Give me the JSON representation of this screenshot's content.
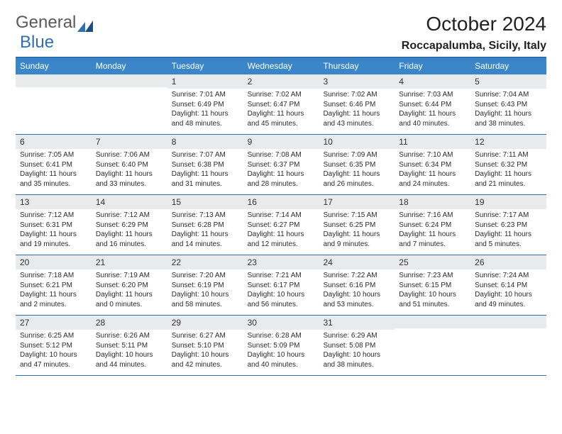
{
  "logo": {
    "text1": "General",
    "text2": "Blue"
  },
  "title": "October 2024",
  "location": "Roccapalumba, Sicily, Italy",
  "colors": {
    "header_bg": "#3a86c8",
    "border": "#2f6fb0",
    "daynum_bg": "#e9eaeb",
    "text": "#222222"
  },
  "weekdays": [
    "Sunday",
    "Monday",
    "Tuesday",
    "Wednesday",
    "Thursday",
    "Friday",
    "Saturday"
  ],
  "weeks": [
    [
      {
        "n": "",
        "sr": "",
        "ss": "",
        "dl": ""
      },
      {
        "n": "",
        "sr": "",
        "ss": "",
        "dl": ""
      },
      {
        "n": "1",
        "sr": "Sunrise: 7:01 AM",
        "ss": "Sunset: 6:49 PM",
        "dl": "Daylight: 11 hours and 48 minutes."
      },
      {
        "n": "2",
        "sr": "Sunrise: 7:02 AM",
        "ss": "Sunset: 6:47 PM",
        "dl": "Daylight: 11 hours and 45 minutes."
      },
      {
        "n": "3",
        "sr": "Sunrise: 7:02 AM",
        "ss": "Sunset: 6:46 PM",
        "dl": "Daylight: 11 hours and 43 minutes."
      },
      {
        "n": "4",
        "sr": "Sunrise: 7:03 AM",
        "ss": "Sunset: 6:44 PM",
        "dl": "Daylight: 11 hours and 40 minutes."
      },
      {
        "n": "5",
        "sr": "Sunrise: 7:04 AM",
        "ss": "Sunset: 6:43 PM",
        "dl": "Daylight: 11 hours and 38 minutes."
      }
    ],
    [
      {
        "n": "6",
        "sr": "Sunrise: 7:05 AM",
        "ss": "Sunset: 6:41 PM",
        "dl": "Daylight: 11 hours and 35 minutes."
      },
      {
        "n": "7",
        "sr": "Sunrise: 7:06 AM",
        "ss": "Sunset: 6:40 PM",
        "dl": "Daylight: 11 hours and 33 minutes."
      },
      {
        "n": "8",
        "sr": "Sunrise: 7:07 AM",
        "ss": "Sunset: 6:38 PM",
        "dl": "Daylight: 11 hours and 31 minutes."
      },
      {
        "n": "9",
        "sr": "Sunrise: 7:08 AM",
        "ss": "Sunset: 6:37 PM",
        "dl": "Daylight: 11 hours and 28 minutes."
      },
      {
        "n": "10",
        "sr": "Sunrise: 7:09 AM",
        "ss": "Sunset: 6:35 PM",
        "dl": "Daylight: 11 hours and 26 minutes."
      },
      {
        "n": "11",
        "sr": "Sunrise: 7:10 AM",
        "ss": "Sunset: 6:34 PM",
        "dl": "Daylight: 11 hours and 24 minutes."
      },
      {
        "n": "12",
        "sr": "Sunrise: 7:11 AM",
        "ss": "Sunset: 6:32 PM",
        "dl": "Daylight: 11 hours and 21 minutes."
      }
    ],
    [
      {
        "n": "13",
        "sr": "Sunrise: 7:12 AM",
        "ss": "Sunset: 6:31 PM",
        "dl": "Daylight: 11 hours and 19 minutes."
      },
      {
        "n": "14",
        "sr": "Sunrise: 7:12 AM",
        "ss": "Sunset: 6:29 PM",
        "dl": "Daylight: 11 hours and 16 minutes."
      },
      {
        "n": "15",
        "sr": "Sunrise: 7:13 AM",
        "ss": "Sunset: 6:28 PM",
        "dl": "Daylight: 11 hours and 14 minutes."
      },
      {
        "n": "16",
        "sr": "Sunrise: 7:14 AM",
        "ss": "Sunset: 6:27 PM",
        "dl": "Daylight: 11 hours and 12 minutes."
      },
      {
        "n": "17",
        "sr": "Sunrise: 7:15 AM",
        "ss": "Sunset: 6:25 PM",
        "dl": "Daylight: 11 hours and 9 minutes."
      },
      {
        "n": "18",
        "sr": "Sunrise: 7:16 AM",
        "ss": "Sunset: 6:24 PM",
        "dl": "Daylight: 11 hours and 7 minutes."
      },
      {
        "n": "19",
        "sr": "Sunrise: 7:17 AM",
        "ss": "Sunset: 6:23 PM",
        "dl": "Daylight: 11 hours and 5 minutes."
      }
    ],
    [
      {
        "n": "20",
        "sr": "Sunrise: 7:18 AM",
        "ss": "Sunset: 6:21 PM",
        "dl": "Daylight: 11 hours and 2 minutes."
      },
      {
        "n": "21",
        "sr": "Sunrise: 7:19 AM",
        "ss": "Sunset: 6:20 PM",
        "dl": "Daylight: 11 hours and 0 minutes."
      },
      {
        "n": "22",
        "sr": "Sunrise: 7:20 AM",
        "ss": "Sunset: 6:19 PM",
        "dl": "Daylight: 10 hours and 58 minutes."
      },
      {
        "n": "23",
        "sr": "Sunrise: 7:21 AM",
        "ss": "Sunset: 6:17 PM",
        "dl": "Daylight: 10 hours and 56 minutes."
      },
      {
        "n": "24",
        "sr": "Sunrise: 7:22 AM",
        "ss": "Sunset: 6:16 PM",
        "dl": "Daylight: 10 hours and 53 minutes."
      },
      {
        "n": "25",
        "sr": "Sunrise: 7:23 AM",
        "ss": "Sunset: 6:15 PM",
        "dl": "Daylight: 10 hours and 51 minutes."
      },
      {
        "n": "26",
        "sr": "Sunrise: 7:24 AM",
        "ss": "Sunset: 6:14 PM",
        "dl": "Daylight: 10 hours and 49 minutes."
      }
    ],
    [
      {
        "n": "27",
        "sr": "Sunrise: 6:25 AM",
        "ss": "Sunset: 5:12 PM",
        "dl": "Daylight: 10 hours and 47 minutes."
      },
      {
        "n": "28",
        "sr": "Sunrise: 6:26 AM",
        "ss": "Sunset: 5:11 PM",
        "dl": "Daylight: 10 hours and 44 minutes."
      },
      {
        "n": "29",
        "sr": "Sunrise: 6:27 AM",
        "ss": "Sunset: 5:10 PM",
        "dl": "Daylight: 10 hours and 42 minutes."
      },
      {
        "n": "30",
        "sr": "Sunrise: 6:28 AM",
        "ss": "Sunset: 5:09 PM",
        "dl": "Daylight: 10 hours and 40 minutes."
      },
      {
        "n": "31",
        "sr": "Sunrise: 6:29 AM",
        "ss": "Sunset: 5:08 PM",
        "dl": "Daylight: 10 hours and 38 minutes."
      },
      {
        "n": "",
        "sr": "",
        "ss": "",
        "dl": ""
      },
      {
        "n": "",
        "sr": "",
        "ss": "",
        "dl": ""
      }
    ]
  ]
}
